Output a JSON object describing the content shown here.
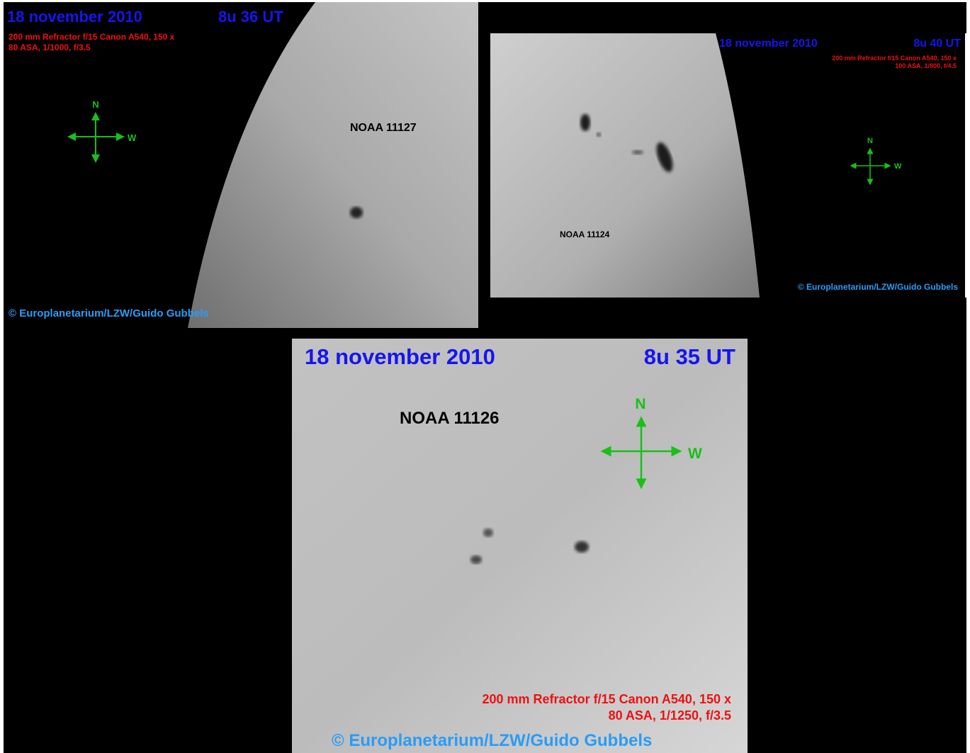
{
  "panels": [
    {
      "date": "18 november 2010",
      "time": "8u 36 UT",
      "equipment": [
        "200 mm Refractor f/15  Canon A540, 150 x",
        "80 ASA, 1/1000, f/3.5"
      ],
      "compass": {
        "north": "N",
        "west": "W"
      },
      "region": "NOAA 11127",
      "credit": "© Europlanetarium/LZW/Guido Gubbels"
    },
    {
      "date": "18 november 2010",
      "time": "8u 40 UT",
      "equipment": [
        "200 mm Refractor f/15  Canon A540, 150 x",
        "100 ASA, 1/800, f/4.5"
      ],
      "compass": {
        "north": "N",
        "west": "W"
      },
      "region": "NOAA 11124",
      "credit": "© Europlanetarium/LZW/Guido Gubbels"
    },
    {
      "date": "18 november 2010",
      "time": "8u 35 UT",
      "equipment": [
        "200 mm Refractor f/15  Canon A540, 150 x",
        "80 ASA, 1/1250, f/3.5"
      ],
      "compass": {
        "north": "N",
        "west": "W"
      },
      "region": "NOAA 11126",
      "credit": "© Europlanetarium/LZW/Guido Gubbels"
    }
  ]
}
